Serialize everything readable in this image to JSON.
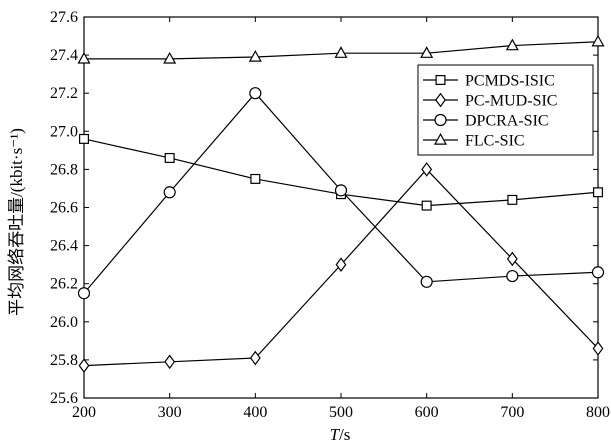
{
  "chart_data": {
    "type": "line",
    "xlabel_italic": "T",
    "xlabel_unit": "/s",
    "ylabel": "平均网络吞吐量/(kbit·s⁻¹)",
    "xlim": [
      200,
      800
    ],
    "ylim": [
      25.6,
      27.6
    ],
    "x": [
      200,
      300,
      400,
      500,
      600,
      700,
      800
    ],
    "x_ticks": [
      "200",
      "300",
      "400",
      "500",
      "600",
      "700",
      "800"
    ],
    "y_ticks": [
      "25.6",
      "25.8",
      "26.0",
      "26.2",
      "26.4",
      "26.6",
      "26.8",
      "27.0",
      "27.2",
      "27.4",
      "27.6"
    ],
    "grid": false,
    "legend_position": "upper-right",
    "series": [
      {
        "name": "PCMDS-ISIC",
        "marker": "square",
        "values": [
          26.96,
          26.86,
          26.75,
          26.67,
          26.61,
          26.64,
          26.68
        ]
      },
      {
        "name": "PC-MUD-SIC",
        "marker": "diamond",
        "values": [
          25.77,
          25.79,
          25.81,
          26.3,
          26.8,
          26.33,
          25.86
        ]
      },
      {
        "name": "DPCRA-SIC",
        "marker": "circle",
        "values": [
          26.15,
          26.68,
          27.2,
          26.69,
          26.21,
          26.24,
          26.26
        ]
      },
      {
        "name": "FLC-SIC",
        "marker": "triangle",
        "values": [
          27.38,
          27.38,
          27.39,
          27.41,
          27.41,
          27.45,
          27.47
        ]
      }
    ]
  }
}
